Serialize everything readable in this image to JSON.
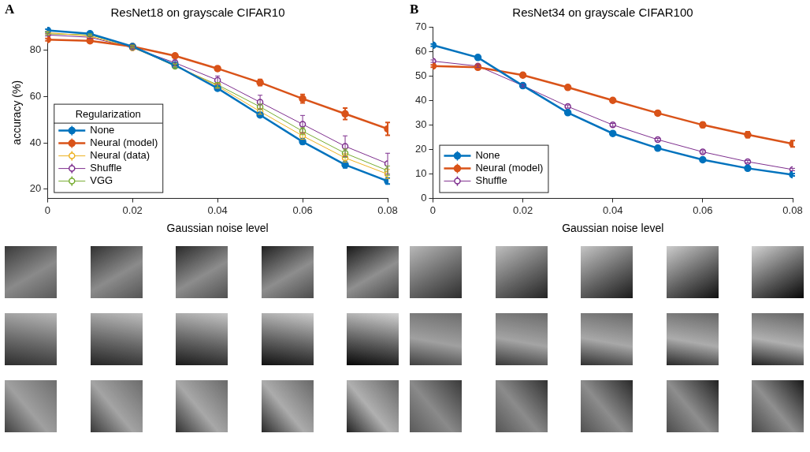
{
  "chart_data": [
    {
      "type": "line",
      "label": "A",
      "title": "ResNet18 on grayscale CIFAR10",
      "x_label": "Gaussian noise level",
      "y_label": "accuracy (%)",
      "x": [
        0,
        0.01,
        0.02,
        0.03,
        0.04,
        0.05,
        0.06,
        0.07,
        0.08
      ],
      "xlim": [
        0,
        0.08
      ],
      "xticks": [
        0,
        0.02,
        0.04,
        0.06,
        0.08
      ],
      "ylim": [
        16,
        90
      ],
      "yticks": [
        20,
        40,
        60,
        80
      ],
      "grid": false,
      "legend": "lower left",
      "legend_title": "Regularization",
      "series": [
        {
          "name": "None",
          "color": "#0072BD",
          "marker": "circle",
          "line_style": "solid",
          "values": [
            88.5,
            87,
            81.5,
            73.5,
            63.5,
            52,
            40.5,
            30.5,
            23.5
          ],
          "errors": [
            0.5,
            0.5,
            0.5,
            0.6,
            0.7,
            0.8,
            1.0,
            1.3,
            1.3
          ]
        },
        {
          "name": "Neural (model)",
          "color": "#D95319",
          "marker": "circle",
          "line_style": "solid",
          "values": [
            84.5,
            84,
            81.5,
            77.5,
            72,
            66,
            59,
            52.5,
            46
          ],
          "errors": [
            0.5,
            0.5,
            0.5,
            0.8,
            0.8,
            1.3,
            1.8,
            2.5,
            2.8
          ]
        },
        {
          "name": "Neural (data)",
          "color": "#EDB120",
          "marker": "open_circle",
          "line_style": "solid",
          "values": [
            87.5,
            86,
            81,
            73.5,
            64.5,
            53.5,
            43,
            33.5,
            26.5
          ],
          "errors": [
            0.5,
            0.5,
            0.5,
            0.8,
            1.0,
            1.2,
            1.5,
            1.8,
            2.0
          ]
        },
        {
          "name": "Shuffle",
          "color": "#7E2F8E",
          "marker": "open_circle",
          "line_style": "solid",
          "values": [
            86.5,
            85.5,
            81,
            74.5,
            67,
            57.5,
            48,
            38.5,
            31
          ],
          "errors": [
            0.5,
            0.5,
            0.5,
            1.2,
            1.8,
            3,
            3.8,
            4.5,
            4.5
          ]
        },
        {
          "name": "VGG",
          "color": "#77AC30",
          "marker": "open_circle",
          "line_style": "solid",
          "values": [
            87,
            86.5,
            81.5,
            73,
            65,
            55.5,
            45,
            35.5,
            28
          ],
          "errors": [
            0.5,
            0.5,
            0.5,
            0.8,
            1.0,
            1.2,
            1.5,
            1.8,
            2.0
          ]
        }
      ]
    },
    {
      "type": "line",
      "label": "B",
      "title": "ResNet34 on grayscale CIFAR100",
      "x_label": "Gaussian noise level",
      "x": [
        0,
        0.01,
        0.02,
        0.03,
        0.04,
        0.05,
        0.06,
        0.07,
        0.08
      ],
      "xlim": [
        0,
        0.08
      ],
      "xticks": [
        0,
        0.02,
        0.04,
        0.06,
        0.08
      ],
      "ylim": [
        0,
        70
      ],
      "yticks": [
        0,
        10,
        20,
        30,
        40,
        50,
        60,
        70
      ],
      "grid": false,
      "legend": "lower left",
      "series": [
        {
          "name": "None",
          "color": "#0072BD",
          "marker": "circle",
          "line_style": "solid",
          "values": [
            62.5,
            57.5,
            46,
            35,
            26.5,
            20.5,
            15.8,
            12.3,
            9.7
          ],
          "errors": [
            0.5,
            0.5,
            0.5,
            0.6,
            0.6,
            0.5,
            0.5,
            0.5,
            0.5
          ]
        },
        {
          "name": "Neural (model)",
          "color": "#D95319",
          "marker": "circle",
          "line_style": "solid",
          "values": [
            54,
            53.5,
            50.3,
            45.3,
            40,
            34.8,
            30,
            26,
            22.3
          ],
          "errors": [
            0.5,
            0.5,
            0.5,
            0.5,
            0.5,
            0.8,
            1.0,
            1.2,
            1.3
          ]
        },
        {
          "name": "Shuffle",
          "color": "#7E2F8E",
          "marker": "open_circle",
          "line_style": "solid",
          "values": [
            56,
            54,
            46,
            37.5,
            30,
            24,
            19,
            15,
            11.8
          ],
          "errors": [
            0.5,
            0.5,
            0.5,
            0.6,
            0.6,
            0.5,
            0.5,
            0.5,
            0.5
          ]
        }
      ]
    }
  ]
}
